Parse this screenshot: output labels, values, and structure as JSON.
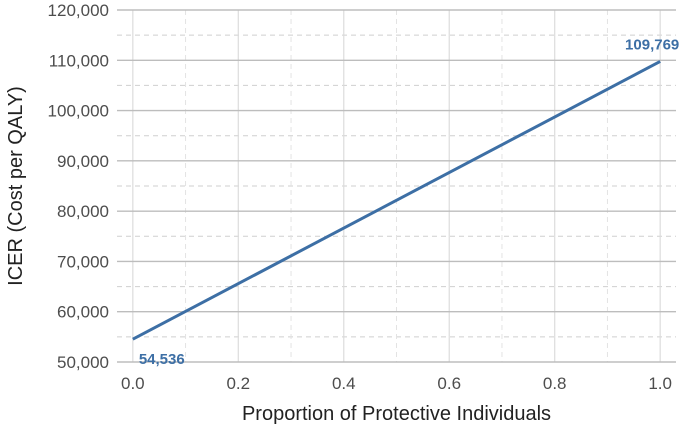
{
  "chart_data": {
    "type": "line",
    "title": "",
    "xlabel": "Proportion of Protective Individuals",
    "ylabel": "ICER (Cost per QALY)",
    "xlim": [
      -0.03,
      1.03
    ],
    "ylim": [
      50000,
      120000
    ],
    "x_ticks": [
      0.0,
      0.2,
      0.4,
      0.6,
      0.8,
      1.0
    ],
    "x_tick_labels": [
      "0.0",
      "0.2",
      "0.4",
      "0.6",
      "0.8",
      "1.0"
    ],
    "y_ticks": [
      50000,
      60000,
      70000,
      80000,
      90000,
      100000,
      110000,
      120000
    ],
    "y_tick_labels": [
      "50,000",
      "60,000",
      "70,000",
      "80,000",
      "90,000",
      "100,000",
      "110,000",
      "120,000"
    ],
    "grid": true,
    "legend": "none",
    "series": [
      {
        "x": [
          0.0,
          1.0
        ],
        "y": [
          54536,
          109769
        ],
        "color": "#3d6fa5"
      }
    ],
    "annotations": [
      {
        "x": 0.0,
        "y": 54536,
        "text": "54,536",
        "position": "below-right"
      },
      {
        "x": 1.0,
        "y": 109769,
        "text": "109,769",
        "position": "above"
      }
    ]
  }
}
